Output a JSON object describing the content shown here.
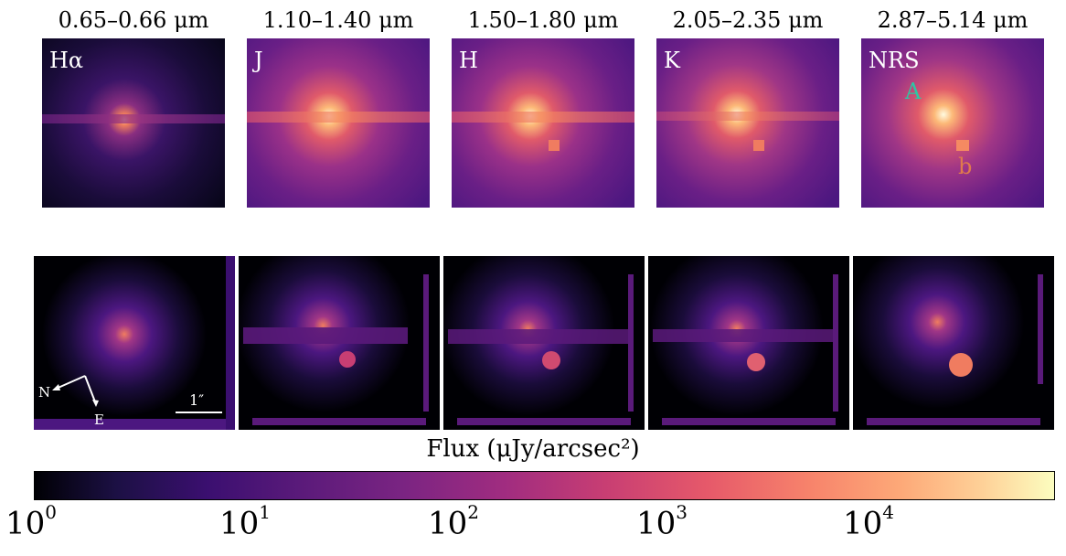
{
  "columns": [
    {
      "title": "0.65–0.66 μm",
      "label": "Hα"
    },
    {
      "title": "1.10–1.40 μm",
      "label": "J"
    },
    {
      "title": "1.50–1.80 μm",
      "label": "H"
    },
    {
      "title": "2.05–2.35 μm",
      "label": "K"
    },
    {
      "title": "2.87–5.14 μm",
      "label": "NRS"
    }
  ],
  "markers": {
    "a": "A",
    "b": "b"
  },
  "compass": {
    "north": "N",
    "east": "E",
    "scale": "1″"
  },
  "colorbar": {
    "title": "Flux (μJy/arcsec²)",
    "ticks": [
      {
        "base": "10",
        "exp": "0"
      },
      {
        "base": "10",
        "exp": "1"
      },
      {
        "base": "10",
        "exp": "2"
      },
      {
        "base": "10",
        "exp": "3"
      },
      {
        "base": "10",
        "exp": "4"
      }
    ]
  },
  "colors": {
    "marker_a": "#2dc7a4",
    "marker_b": "#e07a4c"
  }
}
